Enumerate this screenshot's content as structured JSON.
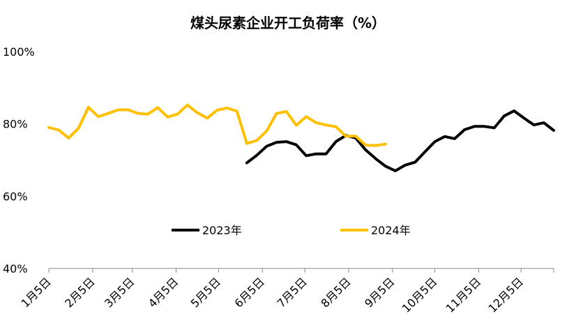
{
  "chart_data": {
    "type": "line",
    "title": "煤头尿素企业开工负荷率（%）",
    "xlabel": "",
    "ylabel": "",
    "ylim": [
      40,
      100
    ],
    "yticks": [
      "40%",
      "60%",
      "80%",
      "100%"
    ],
    "y_tick_values": [
      40,
      60,
      80,
      100
    ],
    "x_range_weeks": [
      0,
      51
    ],
    "x_ticks": [
      {
        "label": "1月5日",
        "week": 0
      },
      {
        "label": "2月5日",
        "week": 4.43
      },
      {
        "label": "3月5日",
        "week": 8.43
      },
      {
        "label": "4月5日",
        "week": 12.86
      },
      {
        "label": "5月5日",
        "week": 17.14
      },
      {
        "label": "6月5日",
        "week": 21.57
      },
      {
        "label": "7月5日",
        "week": 25.86
      },
      {
        "label": "8月5日",
        "week": 30.29
      },
      {
        "label": "9月5日",
        "week": 34.71
      },
      {
        "label": "10月5日",
        "week": 39
      },
      {
        "label": "11月5日",
        "week": 43.43
      },
      {
        "label": "12月5日",
        "week": 47.71
      }
    ],
    "grid": false,
    "legend": "middle",
    "series": [
      {
        "name": "2023年",
        "color": "#000000",
        "start_week": 20,
        "values": [
          69.2,
          71.3,
          73.8,
          74.9,
          75.1,
          74.2,
          71.2,
          71.7,
          71.7,
          75.1,
          76.8,
          76.1,
          72.8,
          70.4,
          68.3,
          67.0,
          68.6,
          69.4,
          72.3,
          75.1,
          76.5,
          75.9,
          78.4,
          79.3,
          79.3,
          78.9,
          82.2,
          83.6,
          81.6,
          79.7,
          80.3,
          78.2
        ]
      },
      {
        "name": "2024年",
        "color": "#FFC000",
        "start_week": 0,
        "values": [
          79.0,
          78.3,
          76.1,
          78.8,
          84.6,
          82.0,
          82.9,
          83.9,
          83.9,
          82.9,
          82.7,
          84.5,
          81.9,
          82.7,
          85.2,
          83.1,
          81.6,
          83.8,
          84.4,
          83.5,
          74.6,
          75.4,
          78.0,
          82.9,
          83.4,
          79.6,
          82.0,
          80.3,
          79.7,
          79.2,
          76.6,
          76.6,
          74.1,
          74.0,
          74.4
        ]
      }
    ]
  }
}
